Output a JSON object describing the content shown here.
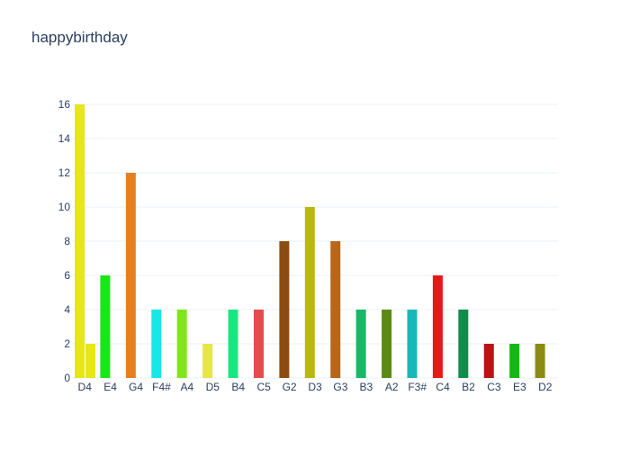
{
  "chart_data": {
    "type": "bar",
    "title": "happybirthday",
    "xlabel": "",
    "ylabel": "",
    "ylim": [
      0,
      16
    ],
    "yticks": [
      0,
      2,
      4,
      6,
      8,
      10,
      12,
      14,
      16
    ],
    "grid": true,
    "categories": [
      "D4",
      "E4",
      "G4",
      "F4#",
      "A4",
      "D5",
      "B4",
      "C5",
      "G2",
      "D3",
      "G3",
      "B3",
      "A2",
      "F3#",
      "C4",
      "B2",
      "C3",
      "E3",
      "D2"
    ],
    "bars": [
      {
        "category": "D4",
        "value": 16,
        "slot": 0,
        "color": "#e6e619"
      },
      {
        "category": "D4",
        "value": 2,
        "slot": 1,
        "color": "#e6e619"
      },
      {
        "category": "E4",
        "value": 6,
        "slot": 0,
        "color": "#19e619"
      },
      {
        "category": "G4",
        "value": 12,
        "slot": 0,
        "color": "#e6801e"
      },
      {
        "category": "F4#",
        "value": 4,
        "slot": 0,
        "color": "#19e6e6"
      },
      {
        "category": "A4",
        "value": 4,
        "slot": 0,
        "color": "#80e619"
      },
      {
        "category": "D5",
        "value": 2,
        "slot": 0,
        "color": "#e6e64c"
      },
      {
        "category": "B4",
        "value": 4,
        "slot": 0,
        "color": "#19e680"
      },
      {
        "category": "C5",
        "value": 4,
        "slot": 0,
        "color": "#e64c4c"
      },
      {
        "category": "G2",
        "value": 8,
        "slot": 0,
        "color": "#8b4c14"
      },
      {
        "category": "D3",
        "value": 10,
        "slot": 0,
        "color": "#b8b814"
      },
      {
        "category": "G3",
        "value": 8,
        "slot": 0,
        "color": "#b8661a"
      },
      {
        "category": "B3",
        "value": 4,
        "slot": 0,
        "color": "#19b866"
      },
      {
        "category": "A2",
        "value": 4,
        "slot": 0,
        "color": "#5c8b14"
      },
      {
        "category": "F3#",
        "value": 4,
        "slot": 0,
        "color": "#19b8b8"
      },
      {
        "category": "C4",
        "value": 6,
        "slot": 0,
        "color": "#e61919"
      },
      {
        "category": "B2",
        "value": 4,
        "slot": 0,
        "color": "#148b4c"
      },
      {
        "category": "C3",
        "value": 2,
        "slot": 0,
        "color": "#b81414"
      },
      {
        "category": "E3",
        "value": 2,
        "slot": 0,
        "color": "#14b814"
      },
      {
        "category": "D2",
        "value": 2,
        "slot": 0,
        "color": "#8b8b14"
      }
    ]
  }
}
